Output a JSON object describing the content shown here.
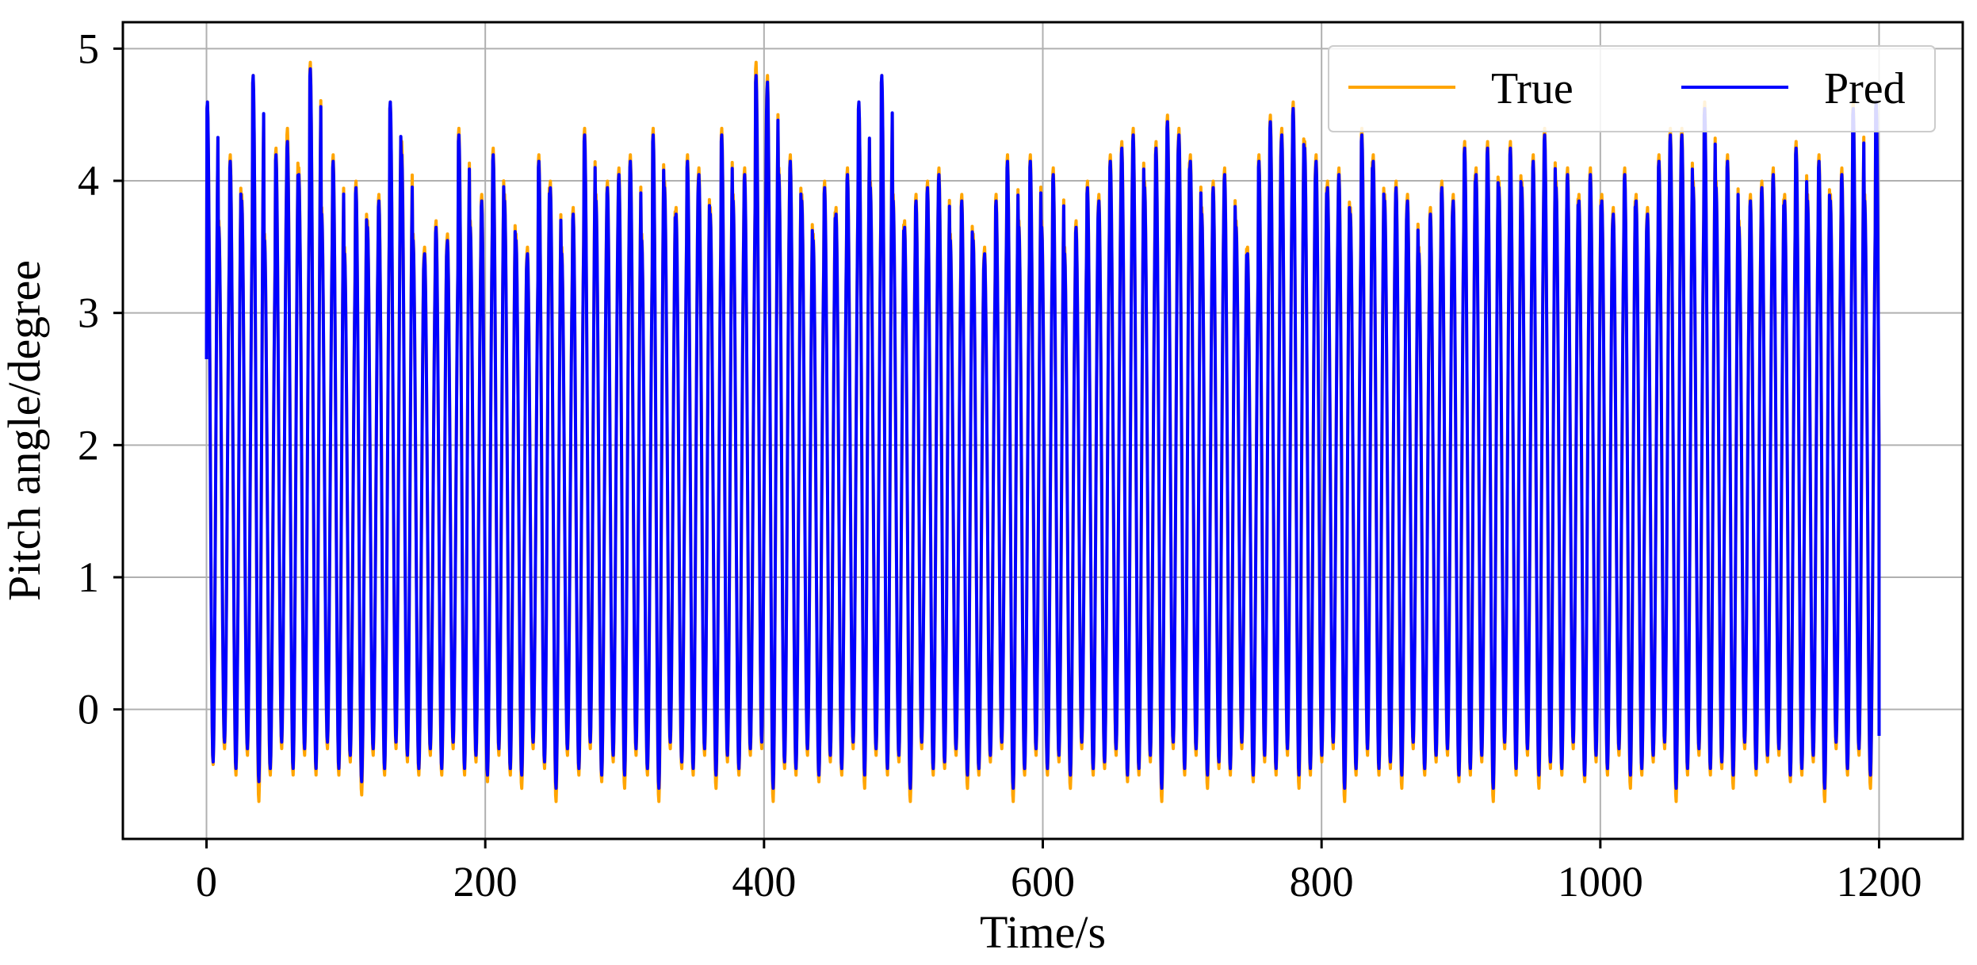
{
  "chart_data": {
    "type": "line",
    "title": "",
    "xlabel": "Time/s",
    "ylabel": "Pitch angle/degree",
    "xlim": [
      -60,
      1260
    ],
    "ylim": [
      -0.98,
      5.2
    ],
    "xticks": [
      0,
      200,
      400,
      600,
      800,
      1000,
      1200
    ],
    "xtick_labels": [
      "0",
      "200",
      "400",
      "600",
      "800",
      "1000",
      "1200"
    ],
    "yticks": [
      0,
      1,
      2,
      3,
      4,
      5
    ],
    "ytick_labels": [
      "0",
      "1",
      "2",
      "3",
      "4",
      "5"
    ],
    "grid": true,
    "legend": {
      "position": "top-right",
      "columns": 2
    },
    "series_style": {
      "True": "#FFA500",
      "Pred": "#0000FF"
    },
    "colors": {
      "True": "#FFA500",
      "Pred": "#0000FF",
      "grid": "#b0b0b0",
      "axes": "#000000"
    },
    "oscillation": {
      "period_s": 8.2,
      "samples_per_cycle": 24
    },
    "series": [
      {
        "name": "True",
        "start": {
          "x": 0,
          "y": 2.7
        },
        "end": {
          "x": 1200,
          "y": -0.2
        },
        "peaks": [
          4.6,
          3.7,
          4.2,
          3.9,
          4.8,
          3.6,
          4.25,
          4.4,
          4.1,
          4.9,
          3.8,
          4.2,
          3.5,
          4.0,
          3.7,
          3.9,
          4.6,
          4.3,
          3.6,
          3.5,
          3.7,
          3.6,
          4.4,
          3.7,
          3.9,
          4.25,
          3.9,
          3.6,
          3.5,
          4.2,
          4.0,
          3.5,
          3.8,
          4.4,
          3.9,
          4.0,
          4.1,
          4.2,
          3.6,
          4.4,
          4.0,
          3.8,
          4.2,
          4.1,
          3.8,
          4.4,
          3.9,
          4.1,
          4.9,
          4.8,
          4.1,
          4.2,
          3.9,
          3.6,
          4.0,
          3.8,
          4.1,
          4.6,
          4.0,
          4.8,
          3.9,
          3.7,
          3.9,
          4.0,
          4.1,
          3.6,
          3.9,
          3.6,
          3.5,
          3.9,
          4.2,
          3.7,
          4.2,
          3.7,
          4.1,
          3.5,
          3.7,
          4.0,
          3.9,
          4.2,
          4.3,
          4.4,
          4.0,
          4.3,
          4.5,
          4.4,
          4.2,
          3.8,
          4.0,
          4.1,
          3.7,
          3.5,
          4.2,
          4.5,
          4.4,
          4.6,
          4.3,
          4.2,
          4.0,
          4.1,
          3.8,
          4.4,
          4.2,
          3.9,
          4.0,
          3.9,
          3.5,
          3.8,
          4.0,
          3.9,
          4.3,
          4.1,
          4.3,
          4.0,
          4.3,
          4.0,
          4.2,
          4.4,
          4.0,
          4.1,
          3.9,
          4.1,
          3.9,
          3.8,
          4.1,
          3.9,
          3.8,
          4.2,
          4.4,
          4.4,
          4.0,
          4.6,
          4.0,
          4.2,
          3.7,
          3.9,
          4.0,
          4.1,
          3.9,
          4.3,
          3.9,
          4.2,
          3.9,
          4.1,
          4.6,
          3.9
        ],
        "troughs": [
          -0.42,
          -0.3,
          -0.5,
          -0.35,
          -0.7,
          -0.5,
          -0.3,
          -0.5,
          -0.35,
          -0.5,
          -0.3,
          -0.5,
          -0.4,
          -0.65,
          -0.35,
          -0.5,
          -0.3,
          -0.4,
          -0.5,
          -0.35,
          -0.5,
          -0.3,
          -0.5,
          -0.4,
          -0.55,
          -0.35,
          -0.5,
          -0.6,
          -0.3,
          -0.45,
          -0.7,
          -0.35,
          -0.5,
          -0.3,
          -0.55,
          -0.4,
          -0.6,
          -0.35,
          -0.5,
          -0.7,
          -0.3,
          -0.45,
          -0.5,
          -0.35,
          -0.6,
          -0.4,
          -0.5,
          -0.35,
          -0.3,
          -0.7,
          -0.45,
          -0.5,
          -0.35,
          -0.55,
          -0.4,
          -0.5,
          -0.3,
          -0.6,
          -0.35,
          -0.5,
          -0.4,
          -0.7,
          -0.3,
          -0.5,
          -0.45,
          -0.35,
          -0.6,
          -0.5,
          -0.4,
          -0.3,
          -0.7,
          -0.5,
          -0.35,
          -0.5,
          -0.4,
          -0.6,
          -0.3,
          -0.5,
          -0.45,
          -0.35,
          -0.55,
          -0.5,
          -0.4,
          -0.7,
          -0.3,
          -0.5,
          -0.35,
          -0.6,
          -0.45,
          -0.5,
          -0.3,
          -0.55,
          -0.4,
          -0.5,
          -0.35,
          -0.6,
          -0.5,
          -0.4,
          -0.3,
          -0.7,
          -0.5,
          -0.35,
          -0.5,
          -0.45,
          -0.6,
          -0.3,
          -0.5,
          -0.4,
          -0.35,
          -0.55,
          -0.5,
          -0.4,
          -0.7,
          -0.3,
          -0.5,
          -0.35,
          -0.6,
          -0.45,
          -0.5,
          -0.3,
          -0.55,
          -0.4,
          -0.5,
          -0.35,
          -0.6,
          -0.5,
          -0.4,
          -0.3,
          -0.7,
          -0.5,
          -0.35,
          -0.5,
          -0.45,
          -0.6,
          -0.3,
          -0.5,
          -0.4,
          -0.35,
          -0.55,
          -0.5,
          -0.4,
          -0.7,
          -0.3,
          -0.5,
          -0.35,
          -0.6,
          -0.45,
          -0.7
        ]
      },
      {
        "name": "Pred",
        "start": {
          "x": 0,
          "y": 2.65
        },
        "end": {
          "x": 1200,
          "y": -0.2
        },
        "peaks": [
          4.6,
          3.65,
          4.15,
          3.85,
          4.8,
          3.55,
          4.2,
          4.3,
          4.05,
          4.85,
          3.75,
          4.15,
          3.45,
          3.95,
          3.65,
          3.85,
          4.6,
          4.2,
          3.55,
          3.45,
          3.65,
          3.55,
          4.35,
          3.65,
          3.85,
          4.2,
          3.85,
          3.55,
          3.45,
          4.15,
          3.95,
          3.45,
          3.75,
          4.35,
          3.85,
          3.95,
          4.05,
          4.15,
          3.55,
          4.35,
          3.95,
          3.75,
          4.15,
          4.05,
          3.75,
          4.35,
          3.85,
          4.05,
          4.8,
          4.75,
          4.05,
          4.15,
          3.85,
          3.55,
          3.95,
          3.75,
          4.05,
          4.6,
          3.95,
          4.8,
          3.85,
          3.65,
          3.85,
          3.95,
          4.05,
          3.55,
          3.85,
          3.55,
          3.45,
          3.85,
          4.15,
          3.65,
          4.15,
          3.65,
          4.05,
          3.45,
          3.65,
          3.95,
          3.85,
          4.15,
          4.25,
          4.35,
          3.95,
          4.25,
          4.45,
          4.35,
          4.15,
          3.75,
          3.95,
          4.05,
          3.65,
          3.45,
          4.15,
          4.45,
          4.35,
          4.55,
          4.25,
          4.15,
          3.95,
          4.05,
          3.75,
          4.35,
          4.15,
          3.85,
          3.95,
          3.85,
          3.45,
          3.75,
          3.95,
          3.85,
          4.25,
          4.05,
          4.25,
          3.95,
          4.25,
          3.95,
          4.15,
          4.35,
          3.95,
          4.05,
          3.85,
          4.05,
          3.85,
          3.75,
          4.05,
          3.85,
          3.75,
          4.15,
          4.35,
          4.35,
          3.95,
          4.55,
          3.95,
          4.15,
          3.65,
          3.85,
          3.95,
          4.05,
          3.85,
          4.25,
          3.85,
          4.15,
          3.85,
          4.05,
          4.55,
          3.85
        ],
        "troughs": [
          -0.4,
          -0.25,
          -0.45,
          -0.3,
          -0.55,
          -0.45,
          -0.25,
          -0.45,
          -0.3,
          -0.45,
          -0.25,
          -0.45,
          -0.35,
          -0.55,
          -0.3,
          -0.45,
          -0.25,
          -0.35,
          -0.45,
          -0.3,
          -0.45,
          -0.25,
          -0.45,
          -0.35,
          -0.5,
          -0.3,
          -0.45,
          -0.5,
          -0.25,
          -0.4,
          -0.6,
          -0.3,
          -0.45,
          -0.25,
          -0.5,
          -0.35,
          -0.5,
          -0.3,
          -0.45,
          -0.6,
          -0.25,
          -0.4,
          -0.45,
          -0.3,
          -0.5,
          -0.35,
          -0.45,
          -0.3,
          -0.25,
          -0.6,
          -0.4,
          -0.45,
          -0.3,
          -0.5,
          -0.35,
          -0.45,
          -0.25,
          -0.5,
          -0.3,
          -0.45,
          -0.35,
          -0.6,
          -0.25,
          -0.45,
          -0.4,
          -0.3,
          -0.5,
          -0.45,
          -0.35,
          -0.25,
          -0.6,
          -0.45,
          -0.3,
          -0.45,
          -0.35,
          -0.5,
          -0.25,
          -0.45,
          -0.4,
          -0.3,
          -0.5,
          -0.45,
          -0.35,
          -0.6,
          -0.25,
          -0.45,
          -0.3,
          -0.5,
          -0.4,
          -0.45,
          -0.25,
          -0.5,
          -0.35,
          -0.45,
          -0.3,
          -0.5,
          -0.45,
          -0.35,
          -0.25,
          -0.6,
          -0.45,
          -0.3,
          -0.45,
          -0.4,
          -0.5,
          -0.25,
          -0.45,
          -0.35,
          -0.3,
          -0.5,
          -0.45,
          -0.35,
          -0.6,
          -0.25,
          -0.45,
          -0.3,
          -0.5,
          -0.4,
          -0.45,
          -0.25,
          -0.5,
          -0.35,
          -0.45,
          -0.3,
          -0.5,
          -0.45,
          -0.35,
          -0.25,
          -0.6,
          -0.45,
          -0.3,
          -0.45,
          -0.4,
          -0.5,
          -0.25,
          -0.45,
          -0.35,
          -0.3,
          -0.5,
          -0.45,
          -0.35,
          -0.6,
          -0.25,
          -0.45,
          -0.3,
          -0.5,
          -0.4,
          -0.6
        ]
      }
    ]
  }
}
